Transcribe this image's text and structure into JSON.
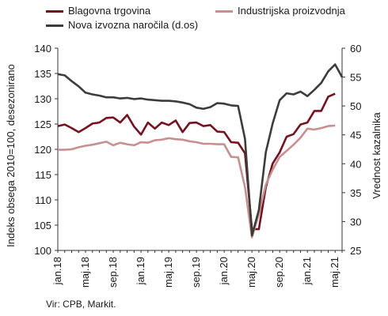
{
  "chart_data": {
    "type": "line",
    "x": [
      "2018-01",
      "2018-02",
      "2018-03",
      "2018-04",
      "2018-05",
      "2018-06",
      "2018-07",
      "2018-08",
      "2018-09",
      "2018-10",
      "2018-11",
      "2018-12",
      "2019-01",
      "2019-02",
      "2019-03",
      "2019-04",
      "2019-05",
      "2019-06",
      "2019-07",
      "2019-08",
      "2019-09",
      "2019-10",
      "2019-11",
      "2019-12",
      "2020-01",
      "2020-02",
      "2020-03",
      "2020-04",
      "2020-05",
      "2020-06",
      "2020-07",
      "2020-08",
      "2020-09",
      "2020-10",
      "2020-11",
      "2020-12",
      "2021-01",
      "2021-02",
      "2021-03",
      "2021-04",
      "2021-05",
      "2021-06"
    ],
    "xticks": [
      {
        "x": "2018-01",
        "label": "jan.18"
      },
      {
        "x": "2018-05",
        "label": "maj.18"
      },
      {
        "x": "2018-09",
        "label": "sep.18"
      },
      {
        "x": "2019-01",
        "label": "jan.19"
      },
      {
        "x": "2019-05",
        "label": "maj.19"
      },
      {
        "x": "2019-09",
        "label": "sep.19"
      },
      {
        "x": "2020-01",
        "label": "jan.20"
      },
      {
        "x": "2020-05",
        "label": "maj.20"
      },
      {
        "x": "2020-09",
        "label": "sep.20"
      },
      {
        "x": "2021-01",
        "label": "jan.21"
      },
      {
        "x": "2021-05",
        "label": "maj.21"
      }
    ],
    "ylabel": "Indeks obsega 2010=100, desezonirano",
    "ylabel_right": "Vrednost kazalnika",
    "ylim": [
      100,
      140
    ],
    "yticks": [
      100,
      105,
      110,
      115,
      120,
      125,
      130,
      135,
      140
    ],
    "ylim_right": [
      25,
      60
    ],
    "yticks_right": [
      25,
      30,
      35,
      40,
      45,
      50,
      55,
      60
    ],
    "grid": false,
    "series": [
      {
        "name": "Blagovna trgovina",
        "color": "#7a0f1e",
        "axis": "left",
        "values": [
          124.6,
          124.9,
          124.2,
          123.4,
          124.2,
          125.1,
          125.3,
          126.2,
          126.3,
          125.3,
          126.8,
          124.5,
          122.9,
          125.3,
          124.1,
          125.3,
          124.8,
          125.7,
          123.4,
          125.2,
          125.3,
          124.6,
          124.8,
          123.5,
          123.4,
          121.4,
          121.3,
          119.2,
          104.2,
          104.2,
          112.5,
          117.2,
          119.4,
          122.5,
          123.0,
          124.9,
          125.3,
          127.6,
          127.6,
          130.4,
          131.0,
          null
        ]
      },
      {
        "name": "Industrijska proizvodnja",
        "color": "#c98e8e",
        "axis": "left",
        "values": [
          119.9,
          119.9,
          120.0,
          120.4,
          120.7,
          120.9,
          121.2,
          121.5,
          120.8,
          121.3,
          121.0,
          120.8,
          121.4,
          121.3,
          121.8,
          121.9,
          122.2,
          122.0,
          121.9,
          121.6,
          121.4,
          121.1,
          121.1,
          121.0,
          121.0,
          118.5,
          118.4,
          112.5,
          102.6,
          107.2,
          113.0,
          116.0,
          118.5,
          119.7,
          120.9,
          122.3,
          124.1,
          123.9,
          124.2,
          124.6,
          124.7,
          null
        ]
      },
      {
        "name": "Nova izvozna naročila (d.os)",
        "color": "#3c3c3c",
        "axis": "right",
        "values": [
          55.5,
          55.3,
          54.3,
          53.4,
          52.3,
          52.0,
          51.8,
          51.5,
          51.5,
          51.3,
          51.4,
          51.2,
          51.3,
          51.1,
          51.0,
          50.9,
          50.9,
          50.8,
          50.6,
          50.3,
          49.7,
          49.5,
          49.8,
          50.5,
          50.4,
          50.1,
          50.0,
          44.3,
          27.6,
          32.0,
          42.0,
          47.0,
          51.0,
          52.2,
          52.0,
          52.5,
          51.7,
          52.8,
          54.0,
          56.0,
          57.2,
          55.0
        ]
      }
    ],
    "legend": "top",
    "source": "Vir: CPB, Markit."
  }
}
